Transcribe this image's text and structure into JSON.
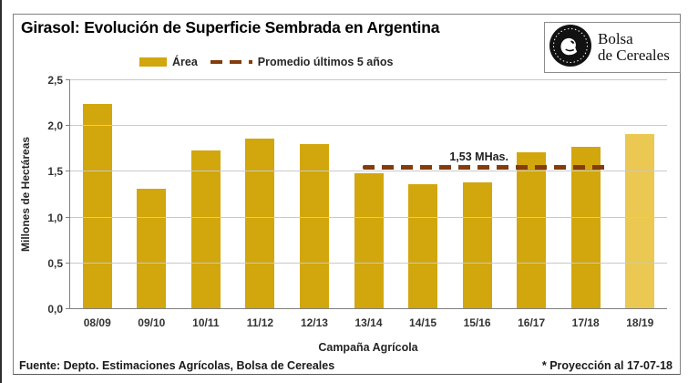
{
  "logo": {
    "line1": "Bolsa",
    "line2": "de Cereales"
  },
  "legend": {
    "area_label": "Área",
    "avg_label": "Promedio últimos 5 años"
  },
  "footer": {
    "source": "Fuente: Depto. Estimaciones Agrícolas, Bolsa de Cereales",
    "note": "* Proyección al 17-07-18"
  },
  "chart_data": {
    "type": "bar",
    "title": "Girasol: Evolución de Superficie Sembrada en Argentina",
    "xlabel": "Campaña Agrícola",
    "ylabel": "Millones de Hectáreas",
    "categories": [
      "08/09",
      "09/10",
      "10/11",
      "11/12",
      "12/13",
      "13/14",
      "14/15",
      "15/16",
      "16/17",
      "17/18",
      "18/19"
    ],
    "values": [
      2.23,
      1.3,
      1.72,
      1.85,
      1.79,
      1.47,
      1.35,
      1.37,
      1.7,
      1.76,
      1.9
    ],
    "projected_index": 10,
    "ylim": [
      0,
      2.5
    ],
    "yticks": [
      {
        "value": 0.0,
        "label": "0,0"
      },
      {
        "value": 0.5,
        "label": "0,5"
      },
      {
        "value": 1.0,
        "label": "1,0"
      },
      {
        "value": 1.5,
        "label": "1,5"
      },
      {
        "value": 2.0,
        "label": "2,0"
      },
      {
        "value": 2.5,
        "label": "2,5"
      }
    ],
    "grid": "horizontal",
    "legend_position": "top",
    "average_line": {
      "value": 1.53,
      "label": "1,53 MHas.",
      "span_categories": [
        "13/14",
        "17/18"
      ],
      "from_pct": 49,
      "to_pct": 90,
      "label_center_pct": 68.5
    },
    "colors": {
      "bar": "#d2a60d",
      "bar_projected": "#eac851",
      "avg_line": "#843c0c",
      "gridline": "#c9c9c9",
      "axis": "#808080"
    }
  }
}
